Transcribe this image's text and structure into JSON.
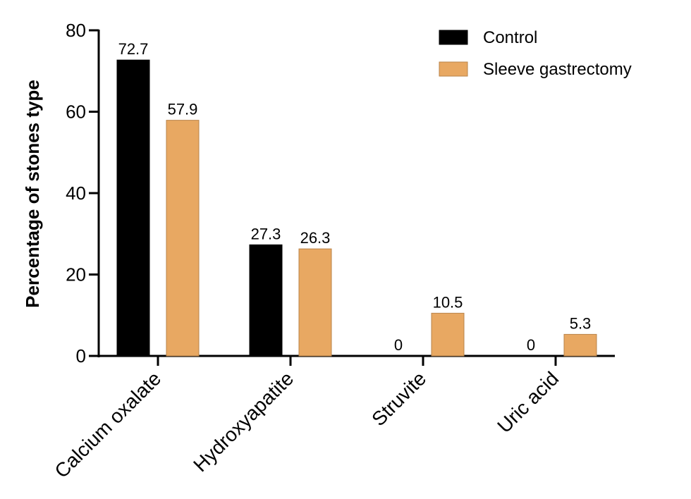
{
  "chart_data": {
    "type": "bar",
    "title": "",
    "xlabel": "",
    "ylabel": "Percentage of stones type",
    "ylim": [
      0,
      80
    ],
    "yticks": [
      0,
      20,
      40,
      60,
      80
    ],
    "grid": false,
    "legend_position": "top-right",
    "categories": [
      "Calcium oxalate",
      "Hydroxyapatite",
      "Struvite",
      "Uric acid"
    ],
    "series": [
      {
        "name": "Control",
        "color": "#000000",
        "values": [
          72.7,
          27.3,
          0,
          0
        ],
        "labels": [
          "72.7",
          "27.3",
          "0",
          "0"
        ]
      },
      {
        "name": "Sleeve gastrectomy",
        "color": "#E8A862",
        "values": [
          57.9,
          26.3,
          10.5,
          5.3
        ],
        "labels": [
          "57.9",
          "26.3",
          "10.5",
          "5.3"
        ]
      }
    ]
  }
}
